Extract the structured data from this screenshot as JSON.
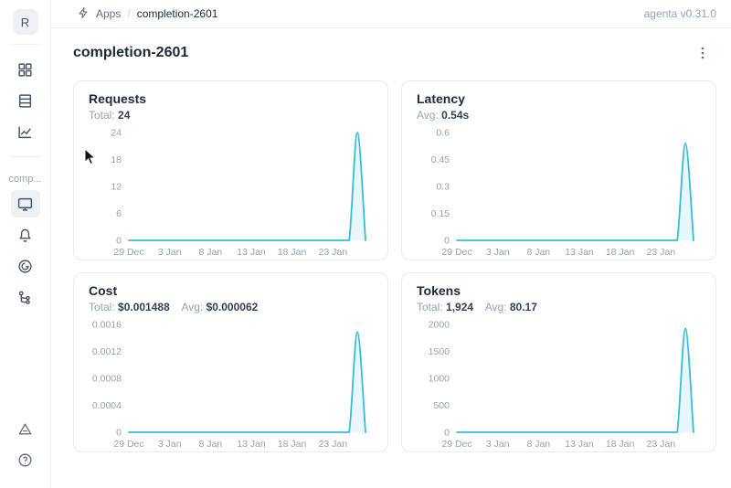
{
  "topbar": {
    "breadcrumb": {
      "apps_label": "Apps",
      "separator": "/",
      "current_page": "completion-2601"
    },
    "version_label": "agenta v0.31.0"
  },
  "sidebar": {
    "workspace_avatar": "R",
    "section_label": "comp...",
    "icons": [
      "apps-grid-icon",
      "table-icon",
      "analytics-icon",
      "monitor-icon",
      "bell-icon",
      "gauge-icon",
      "trace-tree-icon",
      "alert-triangle-icon",
      "help-icon"
    ],
    "active_item": "monitor"
  },
  "page": {
    "title": "completion-2601"
  },
  "colors": {
    "accent_line": "#36bdd8",
    "accent_fill": "rgba(54,189,216,0.12)",
    "text_dark": "#1d2939",
    "text_gray": "#98a2b3",
    "card_border": "#e7eaee"
  },
  "chart_data": [
    {
      "type": "line",
      "name": "requests",
      "title": "Requests",
      "stats": [
        {
          "label": "Total:",
          "value": "24"
        }
      ],
      "ymax": 24,
      "yticks": [
        {
          "v": 0,
          "label": "0"
        },
        {
          "v": 6,
          "label": "6"
        },
        {
          "v": 12,
          "label": "12"
        },
        {
          "v": 18,
          "label": "18"
        },
        {
          "v": 24,
          "label": "24"
        }
      ],
      "xticks": [
        {
          "i": 0,
          "label": "29 Dec"
        },
        {
          "i": 5,
          "label": "3 Jan"
        },
        {
          "i": 10,
          "label": "8 Jan"
        },
        {
          "i": 15,
          "label": "13 Jan"
        },
        {
          "i": 20,
          "label": "18 Jan"
        },
        {
          "i": 25,
          "label": "23 Jan"
        }
      ],
      "values": [
        0,
        0,
        0,
        0,
        0,
        0,
        0,
        0,
        0,
        0,
        0,
        0,
        0,
        0,
        0,
        0,
        0,
        0,
        0,
        0,
        0,
        0,
        0,
        0,
        0,
        0,
        0,
        0,
        24,
        0
      ]
    },
    {
      "type": "line",
      "name": "latency",
      "title": "Latency",
      "stats": [
        {
          "label": "Avg:",
          "value": "0.54s"
        }
      ],
      "ymax": 0.6,
      "yticks": [
        {
          "v": 0,
          "label": "0"
        },
        {
          "v": 0.15,
          "label": "0.15"
        },
        {
          "v": 0.3,
          "label": "0.3"
        },
        {
          "v": 0.45,
          "label": "0.45"
        },
        {
          "v": 0.6,
          "label": "0.6"
        }
      ],
      "xticks": [
        {
          "i": 0,
          "label": "29 Dec"
        },
        {
          "i": 5,
          "label": "3 Jan"
        },
        {
          "i": 10,
          "label": "8 Jan"
        },
        {
          "i": 15,
          "label": "13 Jan"
        },
        {
          "i": 20,
          "label": "18 Jan"
        },
        {
          "i": 25,
          "label": "23 Jan"
        }
      ],
      "values": [
        0,
        0,
        0,
        0,
        0,
        0,
        0,
        0,
        0,
        0,
        0,
        0,
        0,
        0,
        0,
        0,
        0,
        0,
        0,
        0,
        0,
        0,
        0,
        0,
        0,
        0,
        0,
        0,
        0.54,
        0
      ]
    },
    {
      "type": "line",
      "name": "cost",
      "title": "Cost",
      "stats": [
        {
          "label": "Total:",
          "value": "$0.001488"
        },
        {
          "label": "Avg:",
          "value": "$0.000062"
        }
      ],
      "ymax": 0.0016,
      "yticks": [
        {
          "v": 0,
          "label": "0"
        },
        {
          "v": 0.0004,
          "label": "0.0004"
        },
        {
          "v": 0.0008,
          "label": "0.0008"
        },
        {
          "v": 0.0012,
          "label": "0.0012"
        },
        {
          "v": 0.0016,
          "label": "0.0016"
        }
      ],
      "xticks": [
        {
          "i": 0,
          "label": "29 Dec"
        },
        {
          "i": 5,
          "label": "3 Jan"
        },
        {
          "i": 10,
          "label": "8 Jan"
        },
        {
          "i": 15,
          "label": "13 Jan"
        },
        {
          "i": 20,
          "label": "18 Jan"
        },
        {
          "i": 25,
          "label": "23 Jan"
        }
      ],
      "values": [
        0,
        0,
        0,
        0,
        0,
        0,
        0,
        0,
        0,
        0,
        0,
        0,
        0,
        0,
        0,
        0,
        0,
        0,
        0,
        0,
        0,
        0,
        0,
        0,
        0,
        0,
        0,
        0,
        0.001488,
        0
      ]
    },
    {
      "type": "line",
      "name": "tokens",
      "title": "Tokens",
      "stats": [
        {
          "label": "Total:",
          "value": "1,924"
        },
        {
          "label": "Avg:",
          "value": "80.17"
        }
      ],
      "ymax": 2000,
      "yticks": [
        {
          "v": 0,
          "label": "0"
        },
        {
          "v": 500,
          "label": "500"
        },
        {
          "v": 1000,
          "label": "1000"
        },
        {
          "v": 1500,
          "label": "1500"
        },
        {
          "v": 2000,
          "label": "2000"
        }
      ],
      "xticks": [
        {
          "i": 0,
          "label": "29 Dec"
        },
        {
          "i": 5,
          "label": "3 Jan"
        },
        {
          "i": 10,
          "label": "8 Jan"
        },
        {
          "i": 15,
          "label": "13 Jan"
        },
        {
          "i": 20,
          "label": "18 Jan"
        },
        {
          "i": 25,
          "label": "23 Jan"
        }
      ],
      "values": [
        0,
        0,
        0,
        0,
        0,
        0,
        0,
        0,
        0,
        0,
        0,
        0,
        0,
        0,
        0,
        0,
        0,
        0,
        0,
        0,
        0,
        0,
        0,
        0,
        0,
        0,
        0,
        0,
        1924,
        0
      ]
    }
  ]
}
